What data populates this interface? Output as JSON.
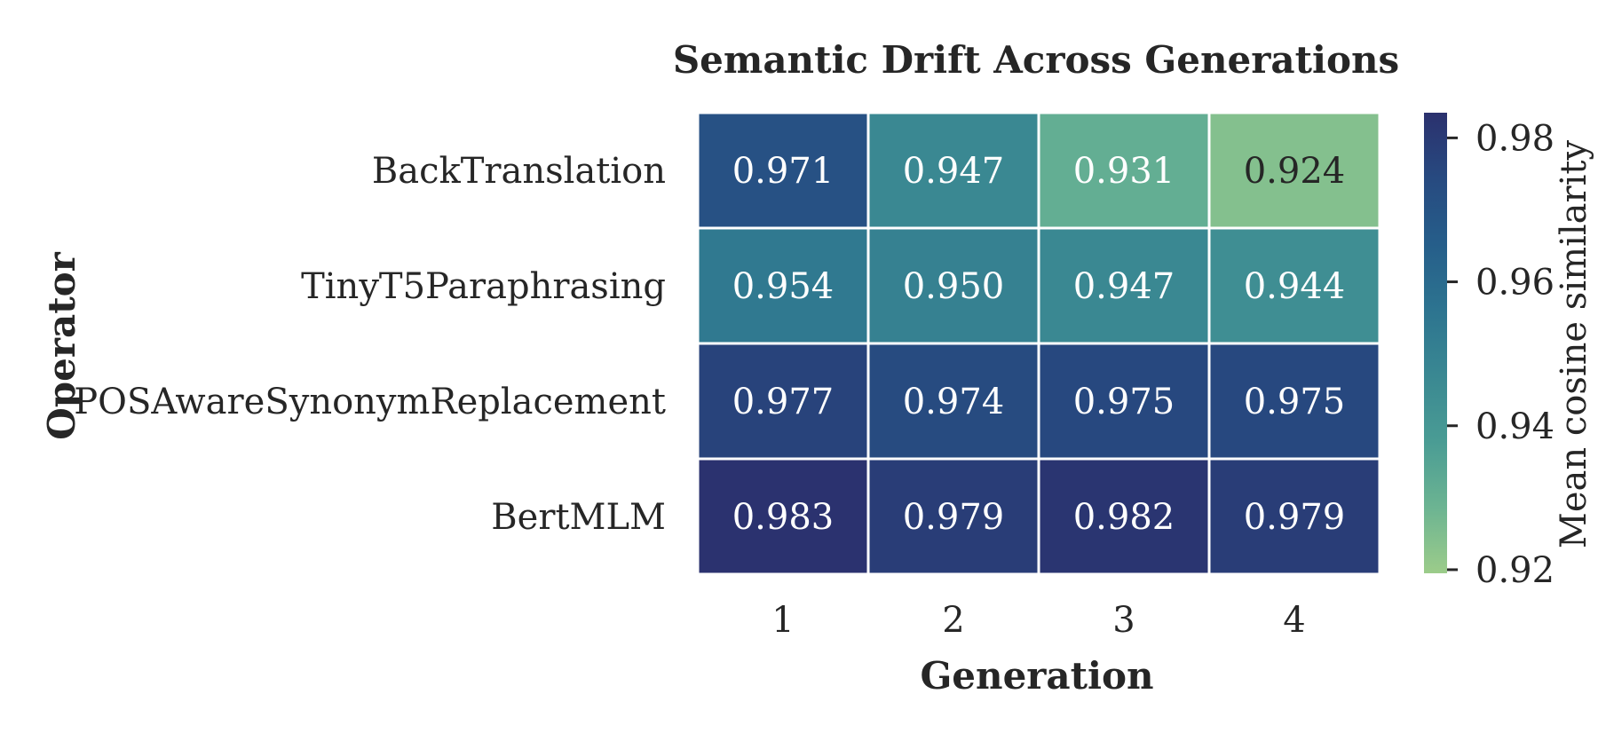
{
  "chart_data": {
    "type": "heatmap",
    "title": "Semantic Drift Across Generations",
    "xlabel": "Generation",
    "ylabel": "Operator",
    "x_categories": [
      "1",
      "2",
      "3",
      "4"
    ],
    "y_categories": [
      "BackTranslation",
      "TinyT5Paraphrasing",
      "POSAwareSynonymReplacement",
      "BertMLM"
    ],
    "values": [
      [
        0.971,
        0.947,
        0.931,
        0.924
      ],
      [
        0.954,
        0.95,
        0.947,
        0.944
      ],
      [
        0.977,
        0.974,
        0.975,
        0.975
      ],
      [
        0.983,
        0.979,
        0.982,
        0.979
      ]
    ],
    "value_labels": [
      [
        "0.971",
        "0.947",
        "0.931",
        "0.924"
      ],
      [
        "0.954",
        "0.950",
        "0.947",
        "0.944"
      ],
      [
        "0.977",
        "0.974",
        "0.975",
        "0.975"
      ],
      [
        "0.983",
        "0.979",
        "0.982",
        "0.979"
      ]
    ],
    "colorbar": {
      "label": "Mean cosine similarity",
      "ticks": [
        0.98,
        0.96,
        0.94,
        0.92
      ],
      "tick_labels": [
        "0.98",
        "0.96",
        "0.94",
        "0.92"
      ],
      "range": [
        0.9195,
        0.9835
      ],
      "colormap": "crest"
    },
    "colors": {
      "colormap_stops": [
        "#9ccc8a",
        "#6cb492",
        "#4a9c94",
        "#3a8892",
        "#2d7490",
        "#265e8a",
        "#274a80",
        "#2b316e"
      ],
      "light_text": "#ffffff",
      "dark_text": "#262626",
      "cell_border": "#ffffff"
    }
  }
}
